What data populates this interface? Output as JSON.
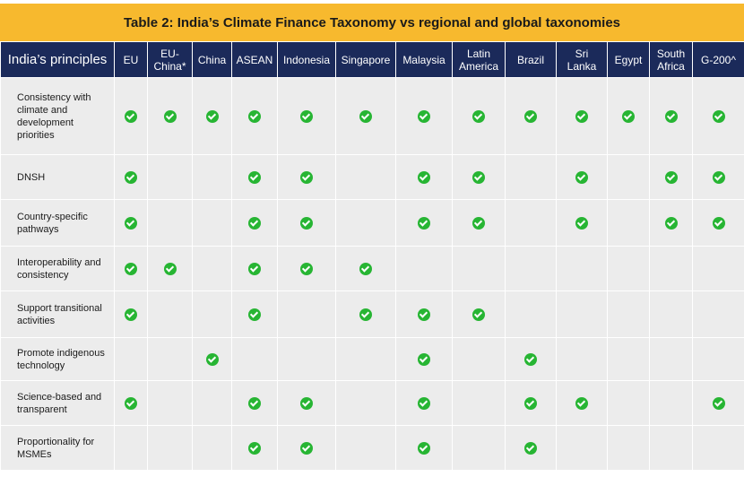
{
  "title": "Table 2: India’s Climate Finance Taxonomy vs regional and global taxonomies",
  "principles_header": "India’s principles",
  "columns": [
    [
      "EU"
    ],
    [
      "EU-",
      "China*"
    ],
    [
      "China"
    ],
    [
      "ASEAN"
    ],
    [
      "Indonesia"
    ],
    [
      "Singapore"
    ],
    [
      "Malaysia"
    ],
    [
      "Latin",
      "America"
    ],
    [
      "Brazil"
    ],
    [
      "Sri",
      "Lanka"
    ],
    [
      "Egypt"
    ],
    [
      "South",
      "Africa"
    ],
    [
      "G-200^"
    ]
  ],
  "check_color": "#27b533",
  "header_color": "#1b2a5a",
  "title_color": "#f7b92e",
  "rows": [
    {
      "label": [
        "Consistency with",
        "climate and",
        "development",
        "priorities"
      ],
      "checks": [
        1,
        1,
        1,
        1,
        1,
        1,
        1,
        1,
        1,
        1,
        1,
        1,
        1
      ]
    },
    {
      "label": [
        "DNSH"
      ],
      "checks": [
        1,
        0,
        0,
        1,
        1,
        0,
        1,
        1,
        0,
        1,
        0,
        1,
        1
      ]
    },
    {
      "label": [
        "Country-specific",
        "pathways"
      ],
      "checks": [
        1,
        0,
        0,
        1,
        1,
        0,
        1,
        1,
        0,
        1,
        0,
        1,
        1
      ]
    },
    {
      "label": [
        "Interoperability and",
        "consistency"
      ],
      "checks": [
        1,
        1,
        0,
        1,
        1,
        1,
        0,
        0,
        0,
        0,
        0,
        0,
        0
      ]
    },
    {
      "label": [
        "Support transitional",
        "activities"
      ],
      "checks": [
        1,
        0,
        0,
        1,
        0,
        1,
        1,
        1,
        0,
        0,
        0,
        0,
        0
      ]
    },
    {
      "label": [
        "Promote indigenous",
        "technology"
      ],
      "checks": [
        0,
        0,
        1,
        0,
        0,
        0,
        1,
        0,
        1,
        0,
        0,
        0,
        0
      ]
    },
    {
      "label": [
        "Science-based and",
        "transparent"
      ],
      "checks": [
        1,
        0,
        0,
        1,
        1,
        0,
        1,
        0,
        1,
        1,
        0,
        0,
        1
      ]
    },
    {
      "label": [
        "Proportionality for",
        "MSMEs"
      ],
      "checks": [
        0,
        0,
        0,
        1,
        1,
        0,
        1,
        0,
        1,
        0,
        0,
        0,
        0
      ]
    }
  ]
}
